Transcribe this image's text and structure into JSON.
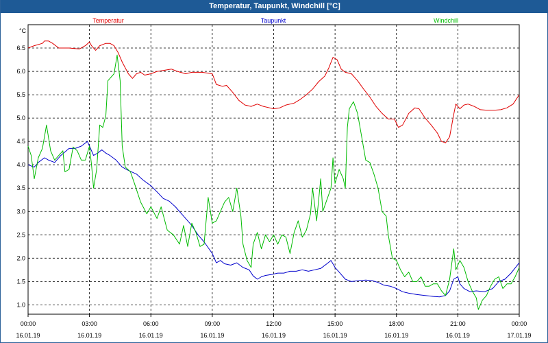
{
  "window": {
    "title": "Temperatur, Taupunkt, Windchill [°C]"
  },
  "chart_data": {
    "type": "line",
    "title": "Temperatur, Taupunkt, Windchill [°C]",
    "ylabel": "°C",
    "ylim": [
      0.8,
      7.0
    ],
    "y_ticks": [
      "1.0",
      "1.5",
      "2.0",
      "2.5",
      "3.0",
      "3.5",
      "4.0",
      "4.5",
      "5.0",
      "5.5",
      "6.0",
      "6.5"
    ],
    "x_range_hours": [
      0,
      24
    ],
    "x_ticks": [
      {
        "time": "00:00",
        "date": "16.01.19"
      },
      {
        "time": "03:00",
        "date": "16.01.19"
      },
      {
        "time": "06:00",
        "date": "16.01.19"
      },
      {
        "time": "09:00",
        "date": "16.01.19"
      },
      {
        "time": "12:00",
        "date": "16.01.19"
      },
      {
        "time": "15:00",
        "date": "16.01.19"
      },
      {
        "time": "18:00",
        "date": "16.01.19"
      },
      {
        "time": "21:00",
        "date": "16.01.19"
      },
      {
        "time": "00:00",
        "date": "17.01.19"
      }
    ],
    "grid": true,
    "legend_placement": "top",
    "series": [
      {
        "name": "Temperatur",
        "color": "#e00000",
        "points": [
          [
            0.0,
            6.5
          ],
          [
            0.3,
            6.55
          ],
          [
            0.7,
            6.6
          ],
          [
            0.8,
            6.65
          ],
          [
            1.0,
            6.65
          ],
          [
            1.2,
            6.6
          ],
          [
            1.5,
            6.5
          ],
          [
            2.0,
            6.5
          ],
          [
            2.5,
            6.48
          ],
          [
            2.8,
            6.55
          ],
          [
            3.0,
            6.63
          ],
          [
            3.1,
            6.55
          ],
          [
            3.3,
            6.45
          ],
          [
            3.5,
            6.55
          ],
          [
            3.8,
            6.6
          ],
          [
            4.0,
            6.6
          ],
          [
            4.2,
            6.55
          ],
          [
            4.4,
            6.4
          ],
          [
            4.6,
            6.2
          ],
          [
            4.9,
            5.95
          ],
          [
            5.1,
            5.85
          ],
          [
            5.3,
            5.95
          ],
          [
            5.5,
            5.98
          ],
          [
            5.7,
            5.92
          ],
          [
            6.0,
            5.95
          ],
          [
            6.3,
            6.0
          ],
          [
            6.6,
            6.02
          ],
          [
            7.0,
            6.05
          ],
          [
            7.3,
            6.0
          ],
          [
            7.7,
            5.95
          ],
          [
            8.0,
            5.98
          ],
          [
            8.5,
            5.98
          ],
          [
            9.0,
            5.95
          ],
          [
            9.2,
            5.72
          ],
          [
            9.5,
            5.68
          ],
          [
            9.7,
            5.7
          ],
          [
            10.0,
            5.55
          ],
          [
            10.3,
            5.38
          ],
          [
            10.6,
            5.28
          ],
          [
            10.9,
            5.25
          ],
          [
            11.2,
            5.3
          ],
          [
            11.5,
            5.25
          ],
          [
            11.8,
            5.22
          ],
          [
            12.0,
            5.2
          ],
          [
            12.3,
            5.22
          ],
          [
            12.6,
            5.28
          ],
          [
            13.0,
            5.32
          ],
          [
            13.3,
            5.4
          ],
          [
            13.6,
            5.5
          ],
          [
            13.9,
            5.62
          ],
          [
            14.2,
            5.78
          ],
          [
            14.5,
            5.9
          ],
          [
            14.7,
            6.08
          ],
          [
            14.9,
            6.3
          ],
          [
            15.1,
            6.25
          ],
          [
            15.3,
            6.05
          ],
          [
            15.5,
            5.98
          ],
          [
            15.8,
            5.95
          ],
          [
            16.1,
            5.8
          ],
          [
            16.4,
            5.62
          ],
          [
            16.7,
            5.45
          ],
          [
            17.0,
            5.25
          ],
          [
            17.3,
            5.1
          ],
          [
            17.6,
            4.98
          ],
          [
            17.9,
            4.98
          ],
          [
            18.1,
            4.8
          ],
          [
            18.3,
            4.85
          ],
          [
            18.6,
            5.1
          ],
          [
            18.9,
            5.22
          ],
          [
            19.1,
            5.2
          ],
          [
            19.4,
            5.0
          ],
          [
            19.7,
            4.85
          ],
          [
            20.0,
            4.68
          ],
          [
            20.2,
            4.5
          ],
          [
            20.4,
            4.47
          ],
          [
            20.6,
            4.6
          ],
          [
            20.8,
            5.08
          ],
          [
            20.9,
            5.3
          ],
          [
            21.1,
            5.2
          ],
          [
            21.3,
            5.28
          ],
          [
            21.5,
            5.3
          ],
          [
            21.8,
            5.25
          ],
          [
            22.1,
            5.18
          ],
          [
            22.4,
            5.17
          ],
          [
            22.8,
            5.17
          ],
          [
            23.1,
            5.18
          ],
          [
            23.4,
            5.22
          ],
          [
            23.7,
            5.3
          ],
          [
            24.0,
            5.5
          ]
        ]
      },
      {
        "name": "Taupunkt",
        "color": "#0000cc",
        "points": [
          [
            0.0,
            4.0
          ],
          [
            0.3,
            3.95
          ],
          [
            0.5,
            4.05
          ],
          [
            0.8,
            4.15
          ],
          [
            1.0,
            4.1
          ],
          [
            1.3,
            4.05
          ],
          [
            1.6,
            4.2
          ],
          [
            2.0,
            4.35
          ],
          [
            2.3,
            4.35
          ],
          [
            2.6,
            4.4
          ],
          [
            2.9,
            4.5
          ],
          [
            3.0,
            4.4
          ],
          [
            3.2,
            4.2
          ],
          [
            3.4,
            4.25
          ],
          [
            3.6,
            4.32
          ],
          [
            3.8,
            4.25
          ],
          [
            4.0,
            4.2
          ],
          [
            4.3,
            4.1
          ],
          [
            4.6,
            3.95
          ],
          [
            4.9,
            3.88
          ],
          [
            5.3,
            3.8
          ],
          [
            5.6,
            3.68
          ],
          [
            6.0,
            3.55
          ],
          [
            6.3,
            3.42
          ],
          [
            6.6,
            3.28
          ],
          [
            6.9,
            3.22
          ],
          [
            7.2,
            3.1
          ],
          [
            7.6,
            2.9
          ],
          [
            8.0,
            2.7
          ],
          [
            8.3,
            2.5
          ],
          [
            8.6,
            2.35
          ],
          [
            9.0,
            2.1
          ],
          [
            9.2,
            1.9
          ],
          [
            9.4,
            1.95
          ],
          [
            9.6,
            1.88
          ],
          [
            9.9,
            1.85
          ],
          [
            10.2,
            1.9
          ],
          [
            10.5,
            1.8
          ],
          [
            10.8,
            1.75
          ],
          [
            11.0,
            1.62
          ],
          [
            11.2,
            1.55
          ],
          [
            11.4,
            1.6
          ],
          [
            11.6,
            1.63
          ],
          [
            11.9,
            1.65
          ],
          [
            12.2,
            1.68
          ],
          [
            12.5,
            1.68
          ],
          [
            12.8,
            1.72
          ],
          [
            13.1,
            1.72
          ],
          [
            13.4,
            1.75
          ],
          [
            13.7,
            1.72
          ],
          [
            14.0,
            1.75
          ],
          [
            14.3,
            1.78
          ],
          [
            14.6,
            1.88
          ],
          [
            14.8,
            1.95
          ],
          [
            15.0,
            1.8
          ],
          [
            15.2,
            1.7
          ],
          [
            15.5,
            1.55
          ],
          [
            15.8,
            1.5
          ],
          [
            16.2,
            1.52
          ],
          [
            16.5,
            1.53
          ],
          [
            16.8,
            1.52
          ],
          [
            17.1,
            1.48
          ],
          [
            17.4,
            1.42
          ],
          [
            17.7,
            1.4
          ],
          [
            18.0,
            1.35
          ],
          [
            18.3,
            1.28
          ],
          [
            18.6,
            1.25
          ],
          [
            19.0,
            1.22
          ],
          [
            19.4,
            1.2
          ],
          [
            19.8,
            1.18
          ],
          [
            20.1,
            1.17
          ],
          [
            20.4,
            1.2
          ],
          [
            20.6,
            1.3
          ],
          [
            20.8,
            1.55
          ],
          [
            21.0,
            1.6
          ],
          [
            21.1,
            1.45
          ],
          [
            21.3,
            1.35
          ],
          [
            21.6,
            1.28
          ],
          [
            21.9,
            1.3
          ],
          [
            22.3,
            1.28
          ],
          [
            22.7,
            1.35
          ],
          [
            23.0,
            1.5
          ],
          [
            23.3,
            1.55
          ],
          [
            23.6,
            1.68
          ],
          [
            24.0,
            1.9
          ]
        ]
      },
      {
        "name": "Windchill",
        "color": "#00bb00",
        "points": [
          [
            0.0,
            4.4
          ],
          [
            0.15,
            4.2
          ],
          [
            0.3,
            3.7
          ],
          [
            0.5,
            4.15
          ],
          [
            0.7,
            4.35
          ],
          [
            0.9,
            4.85
          ],
          [
            1.1,
            4.3
          ],
          [
            1.3,
            4.1
          ],
          [
            1.5,
            4.2
          ],
          [
            1.7,
            4.3
          ],
          [
            1.8,
            3.85
          ],
          [
            2.0,
            3.9
          ],
          [
            2.2,
            4.38
          ],
          [
            2.4,
            4.3
          ],
          [
            2.6,
            4.1
          ],
          [
            2.8,
            4.1
          ],
          [
            3.0,
            4.4
          ],
          [
            3.1,
            4.0
          ],
          [
            3.2,
            3.5
          ],
          [
            3.35,
            3.9
          ],
          [
            3.5,
            4.85
          ],
          [
            3.65,
            4.8
          ],
          [
            3.8,
            5.05
          ],
          [
            3.9,
            5.8
          ],
          [
            4.0,
            5.85
          ],
          [
            4.2,
            5.95
          ],
          [
            4.35,
            6.35
          ],
          [
            4.5,
            5.8
          ],
          [
            4.6,
            4.4
          ],
          [
            4.75,
            3.95
          ],
          [
            5.0,
            3.85
          ],
          [
            5.2,
            3.6
          ],
          [
            5.5,
            3.2
          ],
          [
            5.8,
            2.95
          ],
          [
            6.0,
            3.1
          ],
          [
            6.3,
            2.85
          ],
          [
            6.5,
            3.1
          ],
          [
            6.8,
            2.6
          ],
          [
            7.1,
            2.5
          ],
          [
            7.4,
            2.3
          ],
          [
            7.6,
            2.7
          ],
          [
            7.8,
            2.25
          ],
          [
            8.0,
            2.75
          ],
          [
            8.2,
            2.55
          ],
          [
            8.4,
            2.25
          ],
          [
            8.6,
            2.3
          ],
          [
            8.8,
            3.3
          ],
          [
            9.0,
            2.75
          ],
          [
            9.2,
            2.8
          ],
          [
            9.4,
            3.0
          ],
          [
            9.6,
            3.2
          ],
          [
            9.8,
            3.3
          ],
          [
            10.0,
            3.0
          ],
          [
            10.2,
            3.5
          ],
          [
            10.4,
            2.9
          ],
          [
            10.5,
            2.3
          ],
          [
            10.7,
            1.95
          ],
          [
            10.9,
            1.8
          ],
          [
            11.0,
            2.3
          ],
          [
            11.2,
            2.55
          ],
          [
            11.4,
            2.2
          ],
          [
            11.6,
            2.5
          ],
          [
            11.8,
            2.35
          ],
          [
            12.0,
            2.5
          ],
          [
            12.2,
            2.3
          ],
          [
            12.4,
            2.5
          ],
          [
            12.6,
            2.45
          ],
          [
            12.8,
            2.1
          ],
          [
            13.0,
            2.55
          ],
          [
            13.2,
            2.8
          ],
          [
            13.4,
            2.45
          ],
          [
            13.6,
            2.6
          ],
          [
            13.8,
            2.95
          ],
          [
            13.9,
            3.5
          ],
          [
            14.1,
            2.8
          ],
          [
            14.3,
            3.7
          ],
          [
            14.4,
            3.0
          ],
          [
            14.6,
            3.25
          ],
          [
            14.8,
            3.5
          ],
          [
            14.9,
            4.15
          ],
          [
            15.0,
            3.6
          ],
          [
            15.2,
            3.9
          ],
          [
            15.4,
            3.7
          ],
          [
            15.5,
            3.5
          ],
          [
            15.6,
            4.8
          ],
          [
            15.7,
            5.2
          ],
          [
            15.9,
            5.35
          ],
          [
            16.1,
            5.1
          ],
          [
            16.3,
            4.6
          ],
          [
            16.5,
            4.1
          ],
          [
            16.7,
            4.05
          ],
          [
            16.9,
            3.8
          ],
          [
            17.1,
            3.5
          ],
          [
            17.3,
            3.0
          ],
          [
            17.5,
            2.9
          ],
          [
            17.6,
            2.5
          ],
          [
            17.8,
            2.0
          ],
          [
            18.0,
            1.95
          ],
          [
            18.2,
            1.75
          ],
          [
            18.4,
            1.6
          ],
          [
            18.6,
            1.7
          ],
          [
            18.8,
            1.5
          ],
          [
            19.0,
            1.5
          ],
          [
            19.2,
            1.6
          ],
          [
            19.4,
            1.4
          ],
          [
            19.6,
            1.4
          ],
          [
            19.8,
            1.45
          ],
          [
            20.0,
            1.45
          ],
          [
            20.2,
            1.3
          ],
          [
            20.4,
            1.2
          ],
          [
            20.6,
            1.55
          ],
          [
            20.8,
            2.2
          ],
          [
            20.9,
            1.75
          ],
          [
            21.1,
            1.95
          ],
          [
            21.3,
            1.8
          ],
          [
            21.5,
            1.5
          ],
          [
            21.7,
            1.3
          ],
          [
            21.9,
            1.15
          ],
          [
            22.0,
            0.9
          ],
          [
            22.2,
            1.1
          ],
          [
            22.4,
            1.2
          ],
          [
            22.6,
            1.4
          ],
          [
            22.8,
            1.55
          ],
          [
            23.0,
            1.6
          ],
          [
            23.2,
            1.35
          ],
          [
            23.4,
            1.45
          ],
          [
            23.6,
            1.45
          ],
          [
            23.8,
            1.6
          ],
          [
            24.0,
            1.8
          ]
        ]
      }
    ]
  }
}
